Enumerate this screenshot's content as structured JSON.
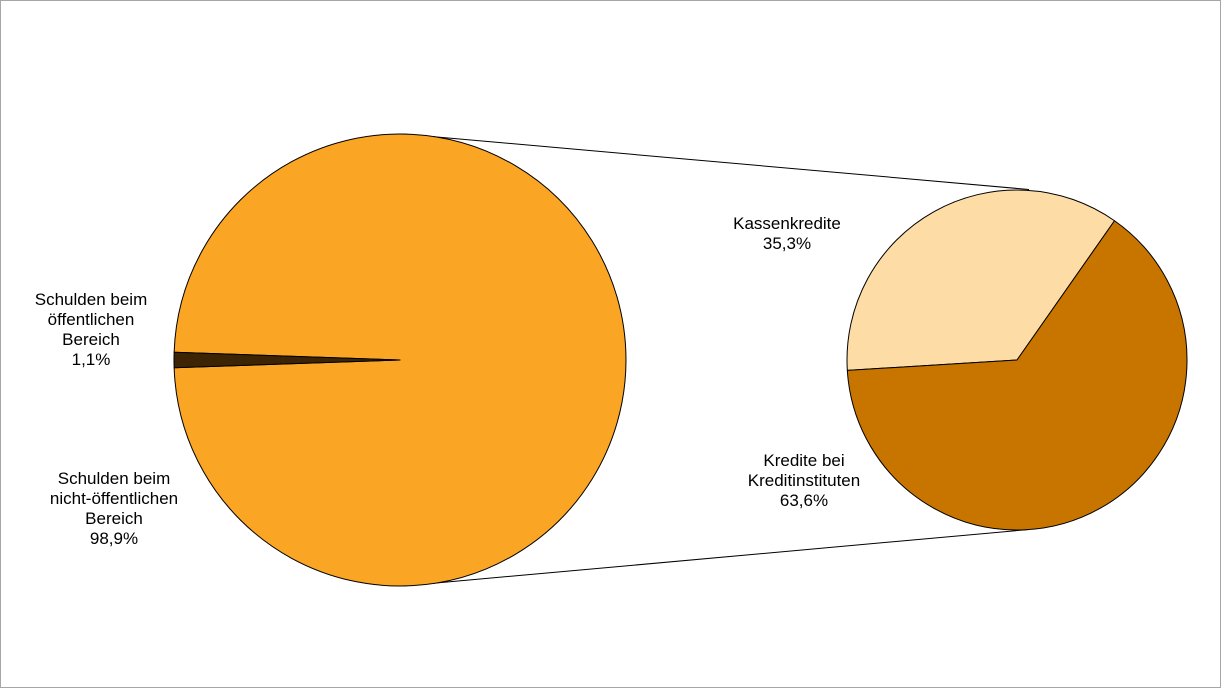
{
  "chart_data": {
    "type": "pie",
    "main_pie": {
      "slices": [
        {
          "name_lines": [
            "Schulden beim",
            "öffentlichen",
            "Bereich"
          ],
          "value": 1.1,
          "label": "1,1%",
          "color": "#3d2405"
        },
        {
          "name_lines": [
            "Schulden beim",
            "nicht-öffentlichen",
            "Bereich"
          ],
          "value": 98.9,
          "label": "98,9%",
          "color": "#fba524"
        }
      ]
    },
    "detail_pie": {
      "parent_slice": "Schulden beim nicht-öffentlichen Bereich",
      "slices": [
        {
          "name_lines": [
            "Kassenkredite"
          ],
          "value": 35.3,
          "label": "35,3%",
          "color": "#fddca6"
        },
        {
          "name_lines": [
            "Kredite bei",
            "Kreditinstituten"
          ],
          "value": 63.6,
          "label": "63,6%",
          "color": "#c87500"
        }
      ]
    },
    "legend": "none",
    "grid": false
  }
}
